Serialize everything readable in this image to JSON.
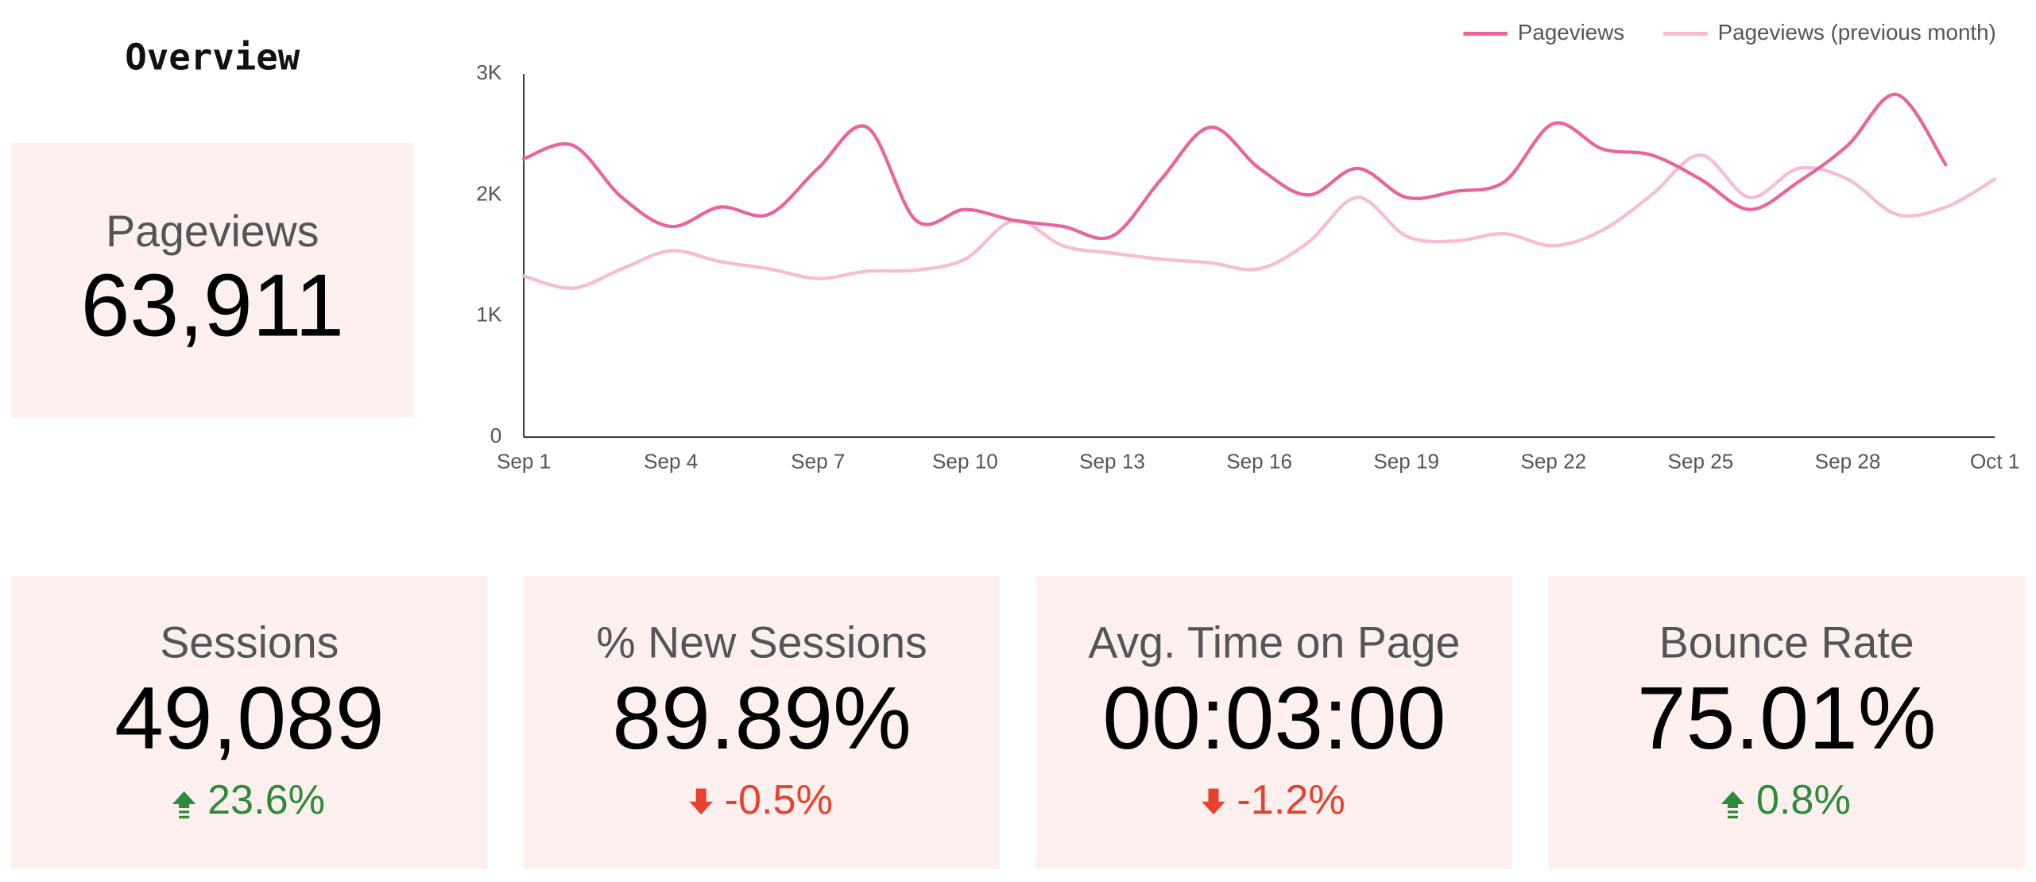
{
  "header": {
    "title": "Overview"
  },
  "chart_data": {
    "type": "line",
    "categories": [
      "Sep 1",
      null,
      null,
      "Sep 4",
      null,
      null,
      "Sep 7",
      null,
      null,
      "Sep 10",
      null,
      null,
      "Sep 13",
      null,
      null,
      "Sep 16",
      null,
      null,
      "Sep 19",
      null,
      null,
      "Sep 22",
      null,
      null,
      "Sep 25",
      null,
      null,
      "Sep 28",
      null,
      null,
      "Oct 1"
    ],
    "series": [
      {
        "name": "Pageviews",
        "color": "#e8649a",
        "values": [
          2300,
          2410,
          1980,
          1740,
          1900,
          1840,
          2220,
          2560,
          1790,
          1880,
          1790,
          1740,
          1660,
          2130,
          2560,
          2220,
          2000,
          2220,
          1980,
          2030,
          2110,
          2590,
          2380,
          2330,
          2130,
          1880,
          2110,
          2410,
          2830,
          2250,
          null
        ]
      },
      {
        "name": "Pageviews (previous month)",
        "color": "#f7bcd4",
        "values": [
          1330,
          1230,
          1390,
          1540,
          1450,
          1390,
          1310,
          1370,
          1380,
          1470,
          1790,
          1580,
          1520,
          1470,
          1440,
          1390,
          1610,
          1980,
          1660,
          1620,
          1680,
          1580,
          1710,
          2000,
          2330,
          1980,
          2220,
          2130,
          1840,
          1900,
          2130
        ]
      }
    ],
    "ylim": [
      0,
      3000
    ],
    "yticks": [
      0,
      {
        "value": 1000,
        "label": "1K"
      },
      {
        "value": 2000,
        "label": "2K"
      },
      {
        "value": 3000,
        "label": "3K"
      }
    ],
    "grid": false,
    "legend": "top-right"
  },
  "main_scorecard": {
    "label": "Pageviews",
    "value": "63,911"
  },
  "scorecards": [
    {
      "label": "Sessions",
      "value": "49,089",
      "delta": "23.6%",
      "delta_color": "#2e8b3a"
    },
    {
      "label": "% New Sessions",
      "value": "89.89%",
      "delta": "-0.5%",
      "delta_color": "#e8412f"
    },
    {
      "label": "Avg. Time on Page",
      "value": "00:03:00",
      "delta": "-1.2%",
      "delta_color": "#e8412f"
    },
    {
      "label": "Bounce Rate",
      "value": "75.01%",
      "delta": "0.8%",
      "delta_color": "#2e8b3a"
    }
  ]
}
